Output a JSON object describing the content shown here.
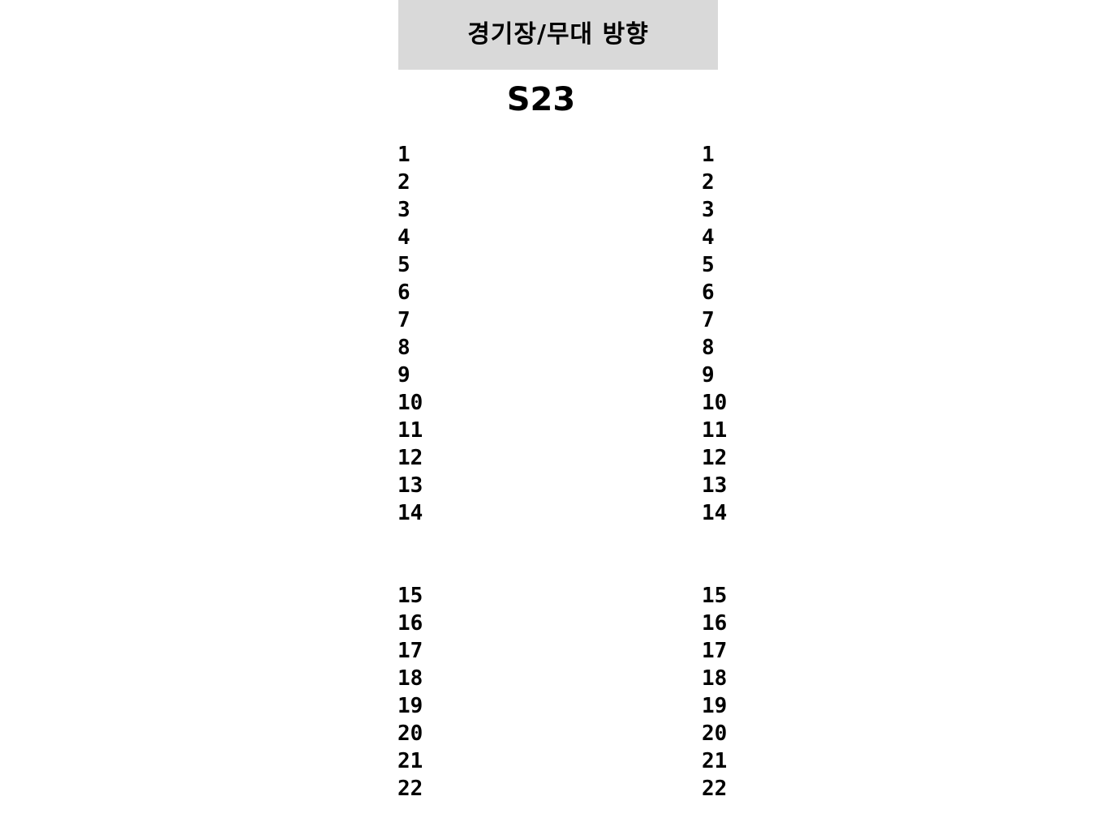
{
  "stage": {
    "label": "경기장/무대 방향",
    "background_color": "#d9d9d9"
  },
  "section": {
    "title": "S23"
  },
  "seat_rows": {
    "left": {
      "front_block": [
        "1",
        "2",
        "3",
        "4",
        "5",
        "6",
        "7",
        "8",
        "9",
        "10",
        "11",
        "12",
        "13",
        "14"
      ],
      "rear_block": [
        "15",
        "16",
        "17",
        "18",
        "19",
        "20",
        "21",
        "22"
      ]
    },
    "right": {
      "front_block": [
        "1",
        "2",
        "3",
        "4",
        "5",
        "6",
        "7",
        "8",
        "9",
        "10",
        "11",
        "12",
        "13",
        "14"
      ],
      "rear_block": [
        "15",
        "16",
        "17",
        "18",
        "19",
        "20",
        "21",
        "22"
      ]
    }
  }
}
